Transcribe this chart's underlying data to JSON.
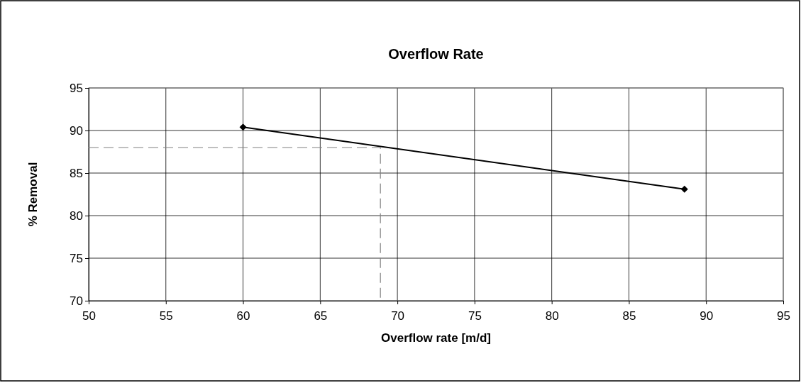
{
  "chart_data": {
    "type": "line",
    "title": "Overflow Rate",
    "xlabel": "Overflow rate [m/d]",
    "ylabel": "% Removal",
    "xlim": [
      50,
      95
    ],
    "xticks": [
      50,
      55,
      60,
      65,
      70,
      75,
      80,
      85,
      90,
      95
    ],
    "ylim": [
      70,
      95
    ],
    "yticks": [
      70,
      75,
      80,
      85,
      90,
      95
    ],
    "grid": true,
    "series": [
      {
        "color": "#000000",
        "x": [
          60,
          88.6
        ],
        "values": [
          90.4,
          83.1
        ],
        "marker": "diamond",
        "line_style": "solid"
      },
      {
        "color": "#808080",
        "x": [
          50,
          68.9,
          68.9
        ],
        "values": [
          88,
          88,
          70
        ],
        "marker": "none",
        "line_style": "dashed"
      }
    ]
  }
}
